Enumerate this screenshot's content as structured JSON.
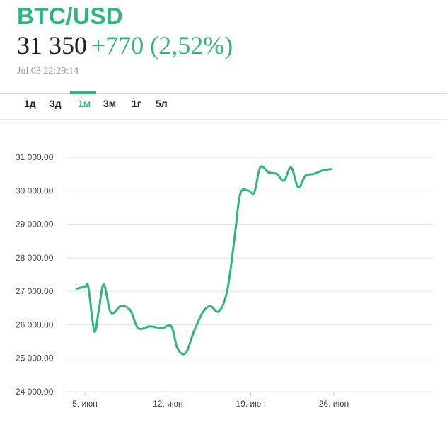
{
  "header": {
    "title": "BTC/USD",
    "price": "31 350",
    "change": "+770 (2,52%)",
    "timestamp": "Jul 03 22:29:14"
  },
  "tabs": [
    {
      "label": "1д",
      "active": false
    },
    {
      "label": "3д",
      "active": false
    },
    {
      "label": "1м",
      "active": true
    },
    {
      "label": "3м",
      "active": false
    },
    {
      "label": "1г",
      "active": false
    },
    {
      "label": "5л",
      "active": false
    }
  ],
  "colors": {
    "accent": "#2eb67d",
    "grid": "#e3e3e3"
  },
  "chart_data": {
    "type": "line",
    "y_ticks": [
      "24 000.00",
      "25 000.00",
      "26 000.00",
      "27 000.00",
      "28 000.00",
      "29 000.00",
      "30 000.00",
      "31 000.00"
    ],
    "x_ticks": [
      {
        "day": 5,
        "label": "5. июн"
      },
      {
        "day": 12,
        "label": "12. июн"
      },
      {
        "day": 19,
        "label": "19. июн"
      },
      {
        "day": 26,
        "label": "26. июн"
      }
    ],
    "ylim": [
      24000,
      31000
    ],
    "grid": true,
    "series": [
      {
        "points": [
          [
            4.3,
            27080
          ],
          [
            5.0,
            27130
          ],
          [
            5.3,
            27100
          ],
          [
            5.8,
            25800
          ],
          [
            6.2,
            26500
          ],
          [
            6.6,
            27200
          ],
          [
            7.2,
            26350
          ],
          [
            8.0,
            26550
          ],
          [
            8.8,
            26450
          ],
          [
            9.5,
            25900
          ],
          [
            10.5,
            25950
          ],
          [
            11.5,
            25900
          ],
          [
            12.3,
            25950
          ],
          [
            12.8,
            25300
          ],
          [
            13.5,
            25150
          ],
          [
            14.2,
            25800
          ],
          [
            15.0,
            26400
          ],
          [
            15.6,
            26550
          ],
          [
            16.3,
            26400
          ],
          [
            17.0,
            27000
          ],
          [
            17.6,
            28500
          ],
          [
            18.1,
            29900
          ],
          [
            18.8,
            30000
          ],
          [
            19.3,
            29950
          ],
          [
            19.8,
            30700
          ],
          [
            20.5,
            30550
          ],
          [
            21.2,
            30500
          ],
          [
            21.8,
            30300
          ],
          [
            22.4,
            30700
          ],
          [
            23.0,
            30100
          ],
          [
            23.6,
            30450
          ],
          [
            24.3,
            30500
          ],
          [
            25.0,
            30600
          ],
          [
            25.8,
            30650
          ]
        ]
      }
    ]
  }
}
